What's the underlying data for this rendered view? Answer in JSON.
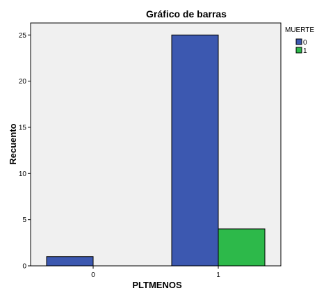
{
  "chart_data": {
    "type": "bar",
    "title": "Gráfico de barras",
    "xlabel": "PLTMENOS",
    "ylabel": "Recuento",
    "categories": [
      "0",
      "1"
    ],
    "series": [
      {
        "name": "0",
        "values": [
          1,
          25
        ],
        "color": "#3c58b0"
      },
      {
        "name": "1",
        "values": [
          0,
          4
        ],
        "color": "#2db94a"
      }
    ],
    "ylim": [
      0,
      26.3
    ],
    "yticks": [
      0,
      5,
      10,
      15,
      20,
      25
    ],
    "ytick_labels": [
      "0",
      "5",
      "10",
      "15",
      "20",
      "25"
    ],
    "legend": {
      "title": "MUERTE",
      "placement": "top-right"
    },
    "plot_background": "#f0f0f0",
    "grid": false
  }
}
